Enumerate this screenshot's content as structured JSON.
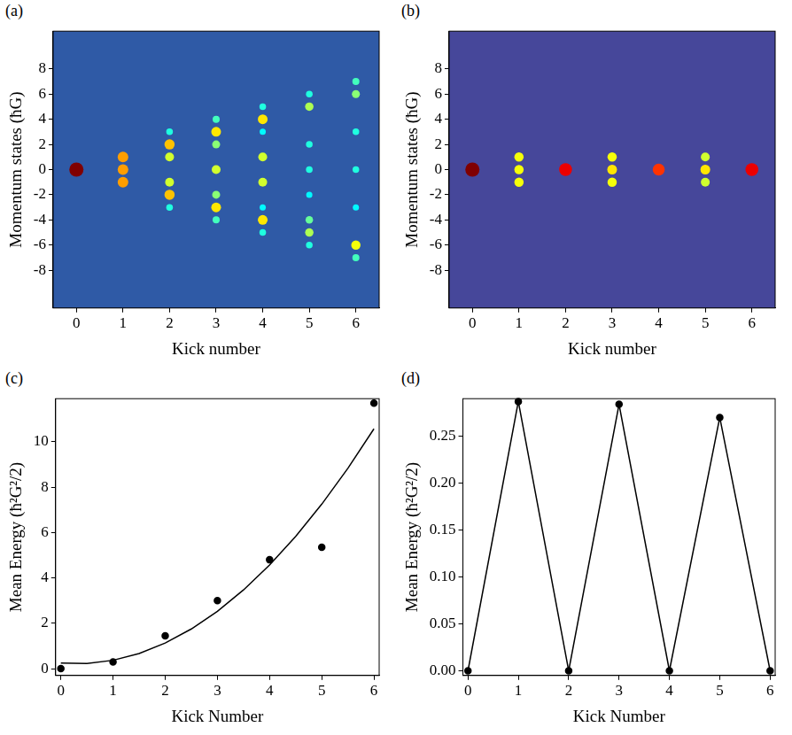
{
  "chart_data": [
    {
      "panel": "(a)",
      "type": "heatmap",
      "x_label": "Kick number",
      "y_label": "Momentum states (ħG)",
      "xlim": [
        -0.5,
        6.5
      ],
      "xticks": [
        0,
        1,
        2,
        3,
        4,
        5,
        6
      ],
      "ylim": [
        -11,
        11
      ],
      "yticks": [
        -8,
        -6,
        -4,
        -2,
        0,
        2,
        4,
        6,
        8
      ],
      "spots": [
        {
          "x": 0,
          "y": 0,
          "intensity": 1.0
        },
        {
          "x": 1,
          "y": -1,
          "intensity": 0.6
        },
        {
          "x": 1,
          "y": 0,
          "intensity": 0.6
        },
        {
          "x": 1,
          "y": 1,
          "intensity": 0.6
        },
        {
          "x": 2,
          "y": -3,
          "intensity": 0.15
        },
        {
          "x": 2,
          "y": -2,
          "intensity": 0.55
        },
        {
          "x": 2,
          "y": -1,
          "intensity": 0.4
        },
        {
          "x": 2,
          "y": 1,
          "intensity": 0.4
        },
        {
          "x": 2,
          "y": 2,
          "intensity": 0.55
        },
        {
          "x": 2,
          "y": 3,
          "intensity": 0.15
        },
        {
          "x": 3,
          "y": -4,
          "intensity": 0.2
        },
        {
          "x": 3,
          "y": -3,
          "intensity": 0.5
        },
        {
          "x": 3,
          "y": -2,
          "intensity": 0.3
        },
        {
          "x": 3,
          "y": 0,
          "intensity": 0.4
        },
        {
          "x": 3,
          "y": 2,
          "intensity": 0.3
        },
        {
          "x": 3,
          "y": 3,
          "intensity": 0.5
        },
        {
          "x": 3,
          "y": 4,
          "intensity": 0.2
        },
        {
          "x": 4,
          "y": -5,
          "intensity": 0.15
        },
        {
          "x": 4,
          "y": -4,
          "intensity": 0.5
        },
        {
          "x": 4,
          "y": -3,
          "intensity": 0.1
        },
        {
          "x": 4,
          "y": -1,
          "intensity": 0.4
        },
        {
          "x": 4,
          "y": 1,
          "intensity": 0.4
        },
        {
          "x": 4,
          "y": 3,
          "intensity": 0.1
        },
        {
          "x": 4,
          "y": 4,
          "intensity": 0.5
        },
        {
          "x": 4,
          "y": 5,
          "intensity": 0.15
        },
        {
          "x": 5,
          "y": -6,
          "intensity": 0.15
        },
        {
          "x": 5,
          "y": -5,
          "intensity": 0.35
        },
        {
          "x": 5,
          "y": -4,
          "intensity": 0.25
        },
        {
          "x": 5,
          "y": -2,
          "intensity": 0.1
        },
        {
          "x": 5,
          "y": 0,
          "intensity": 0.15
        },
        {
          "x": 5,
          "y": 2,
          "intensity": 0.15
        },
        {
          "x": 5,
          "y": 5,
          "intensity": 0.35
        },
        {
          "x": 5,
          "y": 6,
          "intensity": 0.15
        },
        {
          "x": 6,
          "y": -7,
          "intensity": 0.2
        },
        {
          "x": 6,
          "y": -6,
          "intensity": 0.45
        },
        {
          "x": 6,
          "y": -3,
          "intensity": 0.1
        },
        {
          "x": 6,
          "y": 0,
          "intensity": 0.15
        },
        {
          "x": 6,
          "y": 3,
          "intensity": 0.15
        },
        {
          "x": 6,
          "y": 6,
          "intensity": 0.3
        },
        {
          "x": 6,
          "y": 7,
          "intensity": 0.2
        }
      ]
    },
    {
      "panel": "(b)",
      "type": "heatmap",
      "x_label": "Kick number",
      "y_label": "Momentum states (ħG)",
      "xlim": [
        -0.5,
        6.5
      ],
      "xticks": [
        0,
        1,
        2,
        3,
        4,
        5,
        6
      ],
      "ylim": [
        -11,
        11
      ],
      "yticks": [
        -8,
        -6,
        -4,
        -2,
        0,
        2,
        4,
        6,
        8
      ],
      "spots": [
        {
          "x": 0,
          "y": 0,
          "intensity": 1.0
        },
        {
          "x": 1,
          "y": -1,
          "intensity": 0.45
        },
        {
          "x": 1,
          "y": 0,
          "intensity": 0.45
        },
        {
          "x": 1,
          "y": 1,
          "intensity": 0.45
        },
        {
          "x": 2,
          "y": 0,
          "intensity": 0.85
        },
        {
          "x": 3,
          "y": -1,
          "intensity": 0.45
        },
        {
          "x": 3,
          "y": 0,
          "intensity": 0.5
        },
        {
          "x": 3,
          "y": 1,
          "intensity": 0.45
        },
        {
          "x": 4,
          "y": 0,
          "intensity": 0.75
        },
        {
          "x": 5,
          "y": -1,
          "intensity": 0.4
        },
        {
          "x": 5,
          "y": 0,
          "intensity": 0.5
        },
        {
          "x": 5,
          "y": 1,
          "intensity": 0.4
        },
        {
          "x": 6,
          "y": 0,
          "intensity": 0.85
        }
      ]
    },
    {
      "panel": "(c)",
      "type": "scatter",
      "x_label": "Kick Number",
      "y_label": "Mean Energy (ħ²G²/2)",
      "xlim": [
        -0.1,
        6.1
      ],
      "xticks": [
        0,
        1,
        2,
        3,
        4,
        5,
        6
      ],
      "ylim": [
        -0.3,
        11.9
      ],
      "yticks": [
        0,
        2,
        4,
        6,
        8,
        10
      ],
      "series": [
        {
          "type": "scatter",
          "marker": "circle",
          "color": "#000000",
          "x": [
            0,
            1,
            2,
            3,
            4,
            5,
            6
          ],
          "values": [
            0,
            0.3,
            1.45,
            3.0,
            4.8,
            5.35,
            11.7
          ]
        },
        {
          "type": "line",
          "line_style": "solid",
          "color": "#000000",
          "x": [
            0,
            0.5,
            1,
            1.5,
            2,
            2.5,
            3,
            3.5,
            4,
            4.5,
            5,
            5.5,
            6
          ],
          "values": [
            0.25,
            0.23,
            0.37,
            0.67,
            1.13,
            1.75,
            2.53,
            3.47,
            4.57,
            5.83,
            7.25,
            8.83,
            10.57
          ]
        }
      ]
    },
    {
      "panel": "(d)",
      "type": "line",
      "x_label": "Kick Number",
      "y_label": "Mean Energy (ħ²G²/2)",
      "xlim": [
        -0.1,
        6.1
      ],
      "xticks": [
        0,
        1,
        2,
        3,
        4,
        5,
        6
      ],
      "ylim": [
        -0.005,
        0.29
      ],
      "yticks": [
        {
          "value": 0,
          "label": "0.00"
        },
        {
          "value": 0.05,
          "label": "0.05"
        },
        {
          "value": 0.1,
          "label": "0.10"
        },
        {
          "value": 0.15,
          "label": "0.15"
        },
        {
          "value": 0.2,
          "label": "0.20"
        },
        {
          "value": 0.25,
          "label": "0.25"
        }
      ],
      "series": [
        {
          "type": "line",
          "marker": "circle",
          "line_style": "solid",
          "color": "#000000",
          "x": [
            0,
            1,
            2,
            3,
            4,
            5,
            6
          ],
          "values": [
            0,
            0.287,
            0,
            0.284,
            0,
            0.27,
            0
          ]
        }
      ]
    }
  ]
}
